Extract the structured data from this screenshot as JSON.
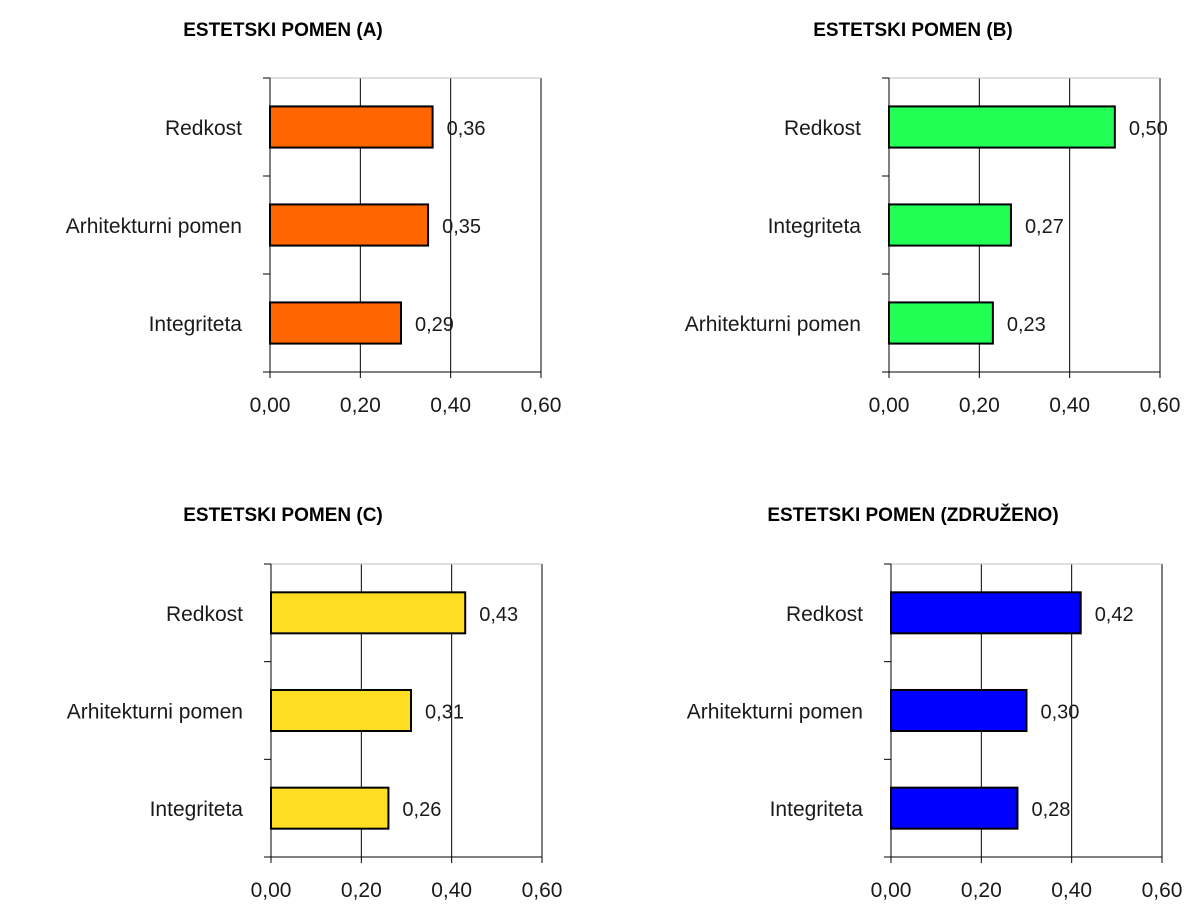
{
  "chart_data": [
    {
      "type": "bar",
      "orientation": "horizontal",
      "title": "ESTETSKI POMEN (A)",
      "categories": [
        "Redkost",
        "Arhitekturni pomen",
        "Integriteta"
      ],
      "values": [
        0.36,
        0.35,
        0.29
      ],
      "value_labels": [
        "0,36",
        "0,35",
        "0,29"
      ],
      "xlim": [
        0,
        0.6
      ],
      "xticks": [
        0,
        0.2,
        0.4,
        0.6
      ],
      "xtick_labels": [
        "0,00",
        "0,20",
        "0,40",
        "0,60"
      ],
      "grid": "vertical",
      "color": "#FF6600"
    },
    {
      "type": "bar",
      "orientation": "horizontal",
      "title": "ESTETSKI POMEN (B)",
      "categories": [
        "Redkost",
        "Integriteta",
        "Arhitekturni pomen"
      ],
      "values": [
        0.5,
        0.27,
        0.23
      ],
      "value_labels": [
        "0,50",
        "0,27",
        "0,23"
      ],
      "xlim": [
        0,
        0.6
      ],
      "xticks": [
        0,
        0.2,
        0.4,
        0.6
      ],
      "xtick_labels": [
        "0,00",
        "0,20",
        "0,40",
        "0,60"
      ],
      "grid": "vertical",
      "color": "#22FF55"
    },
    {
      "type": "bar",
      "orientation": "horizontal",
      "title": "ESTETSKI POMEN (C)",
      "categories": [
        "Redkost",
        "Arhitekturni pomen",
        "Integriteta"
      ],
      "values": [
        0.43,
        0.31,
        0.26
      ],
      "value_labels": [
        "0,43",
        "0,31",
        "0,26"
      ],
      "xlim": [
        0,
        0.6
      ],
      "xticks": [
        0,
        0.2,
        0.4,
        0.6
      ],
      "xtick_labels": [
        "0,00",
        "0,20",
        "0,40",
        "0,60"
      ],
      "grid": "vertical",
      "color": "#FFDD22"
    },
    {
      "type": "bar",
      "orientation": "horizontal",
      "title": "ESTETSKI POMEN (ZDRUŽENO)",
      "categories": [
        "Redkost",
        "Arhitekturni pomen",
        "Integriteta"
      ],
      "values": [
        0.42,
        0.3,
        0.28
      ],
      "value_labels": [
        "0,42",
        "0,30",
        "0,28"
      ],
      "xlim": [
        0,
        0.6
      ],
      "xticks": [
        0,
        0.2,
        0.4,
        0.6
      ],
      "xtick_labels": [
        "0,00",
        "0,20",
        "0,40",
        "0,60"
      ],
      "grid": "vertical",
      "color": "#0000FF"
    }
  ]
}
